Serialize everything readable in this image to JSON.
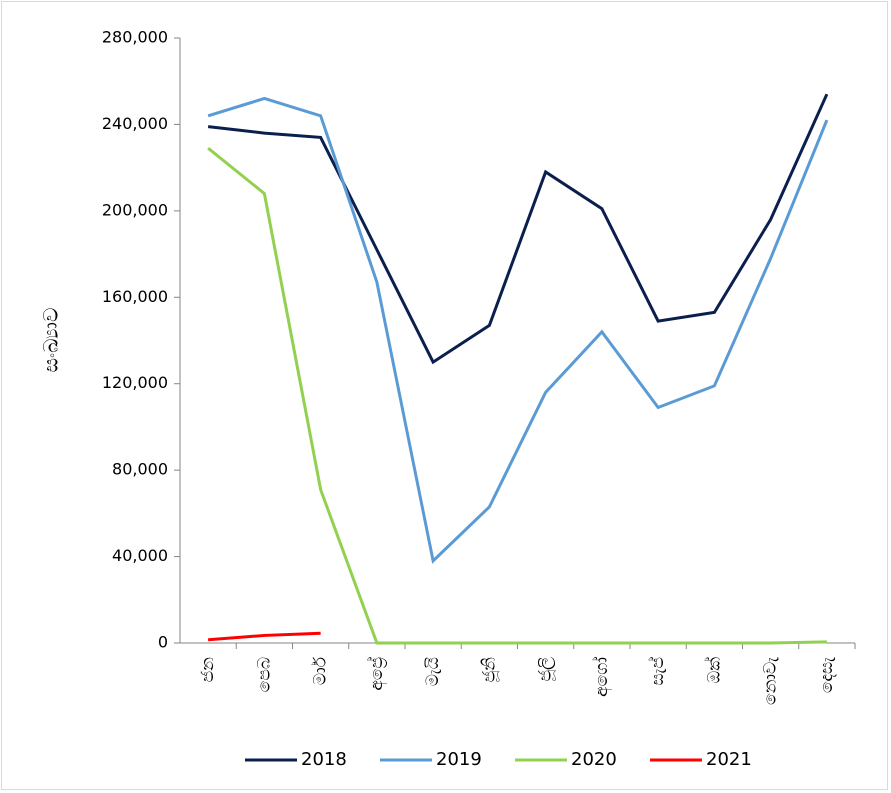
{
  "chart_data": {
    "type": "line",
    "y_label": "සංඛ්‍යාව",
    "categories": [
      "ජන",
      "පෙබ",
      "මාර්",
      "අප්‍රේ",
      "මැයි",
      "ජූනි",
      "ජූලි",
      "අගෝ",
      "සැප්",
      "ඔක්",
      "නොවැ",
      "දෙසැ"
    ],
    "series": [
      {
        "name": "2018",
        "color": "#0b1f4f",
        "values": [
          239000,
          236000,
          234000,
          182000,
          130000,
          147000,
          218000,
          201000,
          149000,
          153000,
          196000,
          254000
        ]
      },
      {
        "name": "2019",
        "color": "#5b9bd5",
        "values": [
          244000,
          252000,
          244000,
          167000,
          38000,
          63000,
          116000,
          144000,
          109000,
          119000,
          178000,
          242000
        ]
      },
      {
        "name": "2020",
        "color": "#92d050",
        "values": [
          229000,
          208000,
          71000,
          0,
          0,
          0,
          0,
          0,
          0,
          0,
          0,
          500
        ]
      },
      {
        "name": "2021",
        "color": "#ff0000",
        "values": [
          1500,
          3500,
          4500,
          null,
          null,
          null,
          null,
          null,
          null,
          null,
          null,
          null
        ]
      }
    ],
    "ylim": [
      0,
      280000
    ],
    "yticks": [
      {
        "value": 0,
        "label": "0"
      },
      {
        "value": 40000,
        "label": "40,000"
      },
      {
        "value": 80000,
        "label": "80,000"
      },
      {
        "value": 120000,
        "label": "120,000"
      },
      {
        "value": 160000,
        "label": "160,000"
      },
      {
        "value": 200000,
        "label": "200,000"
      },
      {
        "value": 240000,
        "label": "240,000"
      },
      {
        "value": 280000,
        "label": "280,000"
      }
    ],
    "legend": "bottom"
  }
}
